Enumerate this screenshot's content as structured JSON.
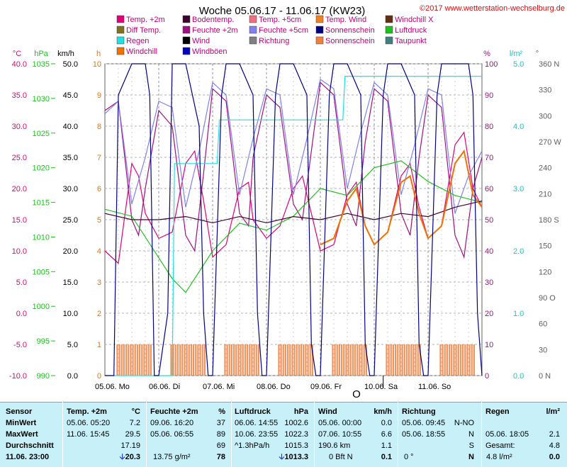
{
  "header": {
    "title": "Woche 05.06.17 - 11.06.17 (KW23)",
    "copyright": "©2017 www.wetterstation-wechselburg.de"
  },
  "legend": [
    {
      "label": "Temp. +2m",
      "color": "#e0007a"
    },
    {
      "label": "Bodentemp.",
      "color": "#400030"
    },
    {
      "label": "Temp. +5cm",
      "color": "#f07080"
    },
    {
      "label": "Temp. Wind",
      "color": "#f08020"
    },
    {
      "label": "Windchill X",
      "color": "#603010"
    },
    {
      "label": "Diff Temp.",
      "color": "#807020"
    },
    {
      "label": "Feuchte +2m",
      "color": "#a01080"
    },
    {
      "label": "Feuchte +5cm",
      "color": "#8080f0"
    },
    {
      "label": "Sonnenschein",
      "color": "#000080"
    },
    {
      "label": "Luftdruck",
      "color": "#20c020"
    },
    {
      "label": "Regen",
      "color": "#20e0e0"
    },
    {
      "label": "Wind",
      "color": "#000000"
    },
    {
      "label": "Richtung",
      "color": "#808080"
    },
    {
      "label": "Sonnenschein",
      "color": "#f08040"
    },
    {
      "label": "Taupunkt",
      "color": "#408080"
    },
    {
      "label": "Windchill",
      "color": "#f07000"
    },
    {
      "label": "Windböen",
      "color": "#0000c0"
    }
  ],
  "axes": {
    "unit_celsius": "°C",
    "unit_hpa": "hPa",
    "unit_kmh": "km/h",
    "unit_h": "h",
    "unit_percent": "%",
    "unit_lm2": "l/m²",
    "unit_deg": "°",
    "celsius_ticks": [
      "40.0",
      "35.0",
      "30.0",
      "25.0",
      "20.0",
      "15.0",
      "10.0",
      "5.0",
      "0.0",
      "-5.0",
      "-10.0"
    ],
    "hpa_ticks": [
      "1035",
      "1030",
      "1025",
      "1020",
      "1015",
      "1010",
      "1005",
      "1000",
      "995",
      "990"
    ],
    "kmh_ticks": [
      "50.0",
      "45.0",
      "40.0",
      "35.0",
      "30.0",
      "25.0",
      "20.0",
      "15.0",
      "10.0",
      "5.0",
      "0.0"
    ],
    "h_ticks": [
      "10",
      "9",
      "8",
      "7",
      "6",
      "5",
      "4",
      "3",
      "2",
      "1",
      "0"
    ],
    "percent_ticks": [
      "100",
      "90",
      "80",
      "70",
      "60",
      "50",
      "40",
      "30",
      "20",
      "10",
      "0"
    ],
    "lm2_ticks": [
      "5.0",
      "4.0",
      "3.0",
      "2.0",
      "1.0",
      "0.0"
    ],
    "deg_ticks": [
      "360 N",
      "330",
      "300",
      "270 W",
      "240",
      "210",
      "180 S",
      "150",
      "120",
      "90 O",
      "60",
      "30",
      "0 N"
    ],
    "day_labels": [
      "05.06. Mo",
      "06.06. Di",
      "07.06. Mi",
      "08.06. Do",
      "09.06. Fr",
      "10.06. Sa",
      "11.06. So"
    ],
    "marker_label": "O"
  },
  "chart_data": {
    "type": "line",
    "title": "Woche 05.06.17 - 11.06.17 (KW23)",
    "x_unit": "hours since 05.06. 00:00",
    "xlim": [
      0,
      168
    ],
    "day_ticks": [
      "05.06. Mo",
      "06.06. Di",
      "07.06. Mi",
      "08.06. Do",
      "09.06. Fr",
      "10.06. Sa",
      "11.06. So"
    ],
    "ylim_celsius": [
      -10,
      40
    ],
    "ylim_hpa": [
      990,
      1035
    ],
    "ylim_kmh": [
      0,
      50
    ],
    "ylim_h": [
      0,
      10
    ],
    "ylim_percent": [
      0,
      100
    ],
    "ylim_lm2": [
      0,
      5
    ],
    "ylim_deg": [
      0,
      360
    ],
    "grid": true,
    "series": [
      {
        "name": "Temp. +2m",
        "unit": "°C",
        "color": "#e0007a",
        "x": [
          0,
          6,
          12,
          15,
          18,
          24,
          30,
          36,
          40,
          44,
          48,
          54,
          60,
          64,
          66,
          72,
          78,
          84,
          88,
          92,
          96,
          102,
          108,
          112,
          116,
          120,
          126,
          132,
          136,
          140,
          144,
          150,
          156,
          160,
          164,
          168
        ],
        "y": [
          10,
          8,
          24,
          22,
          16,
          12,
          13,
          24,
          26,
          18,
          9,
          11,
          20,
          21,
          15,
          12,
          14,
          20,
          22,
          16,
          10,
          11,
          19,
          21,
          14,
          11,
          13,
          22,
          24,
          17,
          12,
          14,
          27,
          29,
          20,
          17
        ]
      },
      {
        "name": "Feuchte +2m",
        "unit": "%",
        "color": "#a01080",
        "x": [
          0,
          6,
          12,
          15,
          18,
          24,
          30,
          36,
          40,
          44,
          48,
          54,
          60,
          64,
          66,
          72,
          78,
          84,
          88,
          92,
          96,
          102,
          108,
          112,
          116,
          120,
          126,
          132,
          136,
          140,
          144,
          150,
          156,
          160,
          164,
          168
        ],
        "y": [
          85,
          88,
          50,
          45,
          60,
          85,
          80,
          45,
          40,
          65,
          92,
          88,
          52,
          48,
          70,
          90,
          86,
          55,
          50,
          72,
          94,
          90,
          55,
          48,
          75,
          92,
          88,
          52,
          45,
          70,
          90,
          86,
          45,
          38,
          60,
          70
        ]
      },
      {
        "name": "Feuchte +5cm",
        "unit": "%",
        "color": "#8080f0",
        "x": [
          0,
          6,
          12,
          18,
          24,
          30,
          36,
          42,
          48,
          54,
          60,
          66,
          72,
          78,
          84,
          90,
          96,
          102,
          108,
          114,
          120,
          126,
          132,
          138,
          144,
          150,
          156,
          162,
          168
        ],
        "y": [
          84,
          88,
          55,
          70,
          88,
          86,
          54,
          72,
          94,
          90,
          58,
          76,
          92,
          90,
          58,
          76,
          95,
          92,
          60,
          78,
          94,
          90,
          58,
          74,
          92,
          90,
          52,
          64,
          72
        ]
      },
      {
        "name": "Luftdruck",
        "unit": "hPa",
        "color": "#20c020",
        "x": [
          0,
          12,
          24,
          30,
          36,
          48,
          60,
          72,
          84,
          96,
          108,
          120,
          132,
          144,
          156,
          168
        ],
        "y": [
          1014,
          1013,
          1007,
          1004,
          1002,
          1008,
          1012,
          1011,
          1013,
          1017,
          1016,
          1020,
          1021,
          1018,
          1016,
          1015
        ]
      },
      {
        "name": "Bodentemp.",
        "unit": "°C",
        "color": "#400030",
        "x": [
          0,
          12,
          24,
          36,
          48,
          60,
          72,
          84,
          96,
          108,
          120,
          132,
          144,
          156,
          168
        ],
        "y": [
          16,
          15,
          15,
          15.5,
          14.5,
          15.5,
          14.5,
          15.5,
          15,
          16,
          15,
          16,
          15.5,
          17,
          18
        ]
      },
      {
        "name": "Windchill",
        "unit": "°C",
        "color": "#f07000",
        "x": [
          96,
          102,
          108,
          112,
          116,
          120,
          126,
          132,
          136,
          140,
          144,
          150,
          156,
          160,
          164,
          168
        ],
        "y": [
          11,
          12,
          18,
          20,
          14,
          11,
          13,
          21,
          22,
          16,
          12,
          14,
          24,
          26,
          19,
          17
        ]
      },
      {
        "name": "Regen",
        "unit": "l/m²",
        "color": "#20e0e0",
        "x": [
          0,
          30,
          31,
          50,
          51,
          106,
          107,
          168
        ],
        "y": [
          0,
          0,
          3.4,
          3.4,
          4.1,
          4.1,
          4.8,
          4.8
        ]
      },
      {
        "name": "Sonnenschein",
        "unit": "h",
        "color": "#000080",
        "x": [
          0,
          4,
          6,
          12,
          18,
          20,
          22,
          24,
          28,
          30,
          36,
          42,
          44,
          46,
          48,
          52,
          54,
          60,
          66,
          68,
          70,
          72,
          76,
          78,
          84,
          90,
          92,
          94,
          96,
          100,
          102,
          108,
          114,
          116,
          118,
          120,
          124,
          126,
          132,
          138,
          140,
          142,
          144,
          148,
          150,
          156,
          162,
          164,
          166,
          168
        ],
        "y": [
          0,
          0,
          9,
          10,
          10,
          9,
          0,
          0,
          2,
          10,
          10,
          8,
          2,
          0,
          0,
          9,
          10,
          10,
          9,
          2,
          0,
          0,
          9,
          10,
          10,
          9,
          1,
          0,
          0,
          9,
          10,
          10,
          9,
          1,
          0,
          0,
          9,
          10,
          10,
          9,
          1,
          0,
          0,
          9,
          10,
          10,
          10,
          9,
          2,
          0
        ]
      }
    ],
    "sunshine_bars": {
      "name": "Sonnenschein",
      "unit": "min/h",
      "color": "#f08040",
      "days": [
        0,
        1,
        2,
        3,
        4,
        5,
        6
      ],
      "start_hour": 5,
      "end_hour": 21,
      "level": 1.0
    }
  },
  "table": {
    "header": {
      "sensor": "Sensor",
      "temp": "Temp. +2m",
      "temp_unit": "°C",
      "hum": "Feuchte +2m",
      "hum_unit": "%",
      "press": "Luftdruck",
      "press_unit": "hPa",
      "wind": "Wind",
      "wind_unit": "km/h",
      "dir": "Richtung",
      "rain": "Regen",
      "rain_unit": "l/m²"
    },
    "rows": [
      {
        "label": "MinWert",
        "temp_time": "05.06.  05:20",
        "temp_val": "7.2",
        "hum_time": "09.06.  16:20",
        "hum_val": "37",
        "press_time": "06.06.  14:55",
        "press_val": "1002.6",
        "wind_time": "05.06.  00:00",
        "wind_val": "0.0",
        "dir_time": "05.06.  09:45",
        "dir_val": "N-NO",
        "rain_time": "",
        "rain_val": ""
      },
      {
        "label": "MaxWert",
        "temp_time": "11.06.  15:45",
        "temp_val": "29.5",
        "hum_time": "05.06.  06:55",
        "hum_val": "89",
        "press_time": "10.06.  23:55",
        "press_val": "1022.3",
        "wind_time": "07.06.  10:55",
        "wind_val": "6.6",
        "dir_time": "05.06.  18:55",
        "dir_val": "N",
        "rain_time": "05.06.  18:05",
        "rain_val": "2.1"
      },
      {
        "label": "Durchschnitt",
        "temp_time": "",
        "temp_val": "17.19",
        "hum_time": "",
        "hum_val": "69",
        "press_time": "^1.3hPa/h",
        "press_val": "1015.3",
        "wind_time": "190.6 km",
        "wind_val": "1.1",
        "dir_time": "",
        "dir_val": "S",
        "rain_time": "Gesamt:",
        "rain_val": "4.8"
      }
    ],
    "current": {
      "time": "11.06.  23:00",
      "temp": "20.3",
      "hum_extra": "13.75 g/m²",
      "hum": "78",
      "press": "1013.3",
      "wind_bft": "0 Bft N",
      "wind": "0.1",
      "dir_deg": "0 °",
      "dir": "N",
      "rain_extra": "4.8 l/m²",
      "rain": "0.0"
    }
  }
}
